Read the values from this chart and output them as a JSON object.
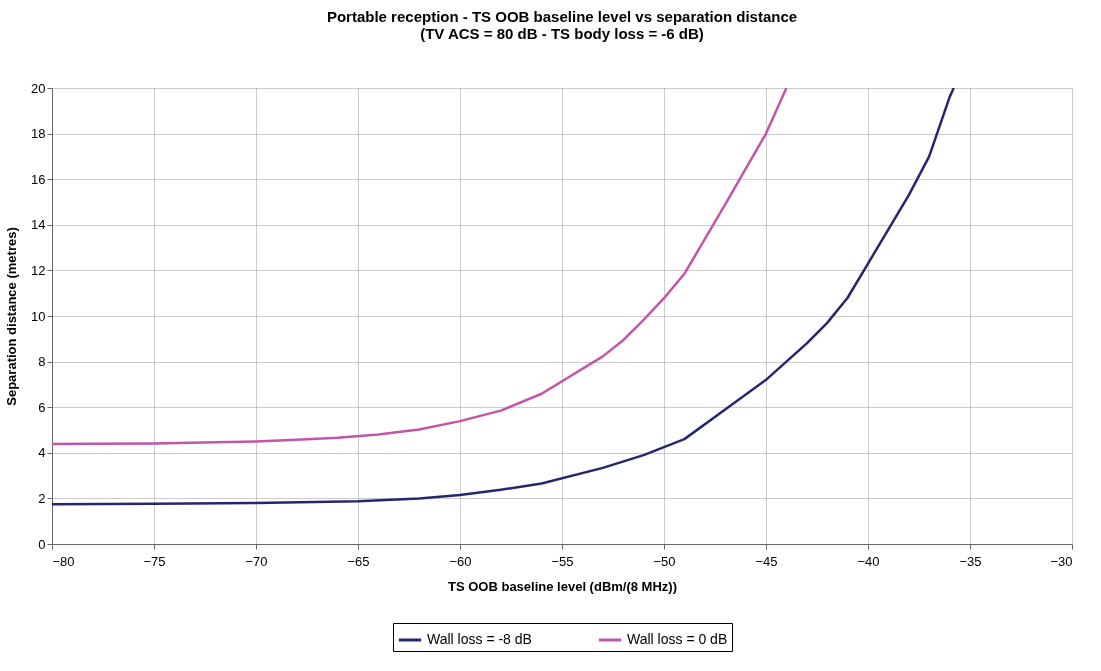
{
  "chart_data": {
    "type": "line",
    "title": "Portable reception - TS OOB baseline level vs separation distance",
    "subtitle": "(TV ACS = 80 dB - TS body loss = -6 dB)",
    "xlabel": "TS OOB baseline level (dBm/(8 MHz))",
    "ylabel": "Separation distance (metres)",
    "xlim": [
      -80,
      -30
    ],
    "xticks": [
      -80,
      -75,
      -70,
      -65,
      -60,
      -55,
      -50,
      -45,
      -40,
      -35,
      -30
    ],
    "ylim": [
      0,
      20
    ],
    "yticks": [
      0,
      2,
      4,
      6,
      8,
      10,
      12,
      14,
      16,
      18,
      20
    ],
    "grid": true,
    "legend": "bottom",
    "marker": "none",
    "line_style": "solid",
    "series": [
      {
        "name": "Wall loss = -8 dB",
        "color": "#262670",
        "x": [
          -80,
          -75,
          -70,
          -65,
          -62,
          -60,
          -58,
          -56,
          -53,
          -51,
          -49,
          -47,
          -45,
          -43,
          -42,
          -41,
          -40,
          -39,
          -38,
          -37,
          -36,
          -35.8
        ],
        "values": [
          1.74,
          1.76,
          1.8,
          1.88,
          2.0,
          2.15,
          2.38,
          2.65,
          3.34,
          3.9,
          4.6,
          5.9,
          7.2,
          8.8,
          9.7,
          10.8,
          12.3,
          13.8,
          15.3,
          17.0,
          19.6,
          20.0
        ]
      },
      {
        "name": "Wall loss = 0 dB",
        "color": "#c355a8",
        "x": [
          -80,
          -78,
          -75,
          -72,
          -70,
          -68,
          -66,
          -64,
          -62,
          -60,
          -58,
          -56,
          -53,
          -52,
          -51,
          -50,
          -49,
          -47,
          -45,
          -44
        ],
        "values": [
          4.39,
          4.4,
          4.41,
          4.46,
          4.5,
          4.57,
          4.66,
          4.8,
          5.02,
          5.39,
          5.85,
          6.59,
          8.23,
          8.94,
          9.83,
          10.78,
          11.85,
          14.9,
          18.0,
          20.0
        ]
      }
    ]
  }
}
